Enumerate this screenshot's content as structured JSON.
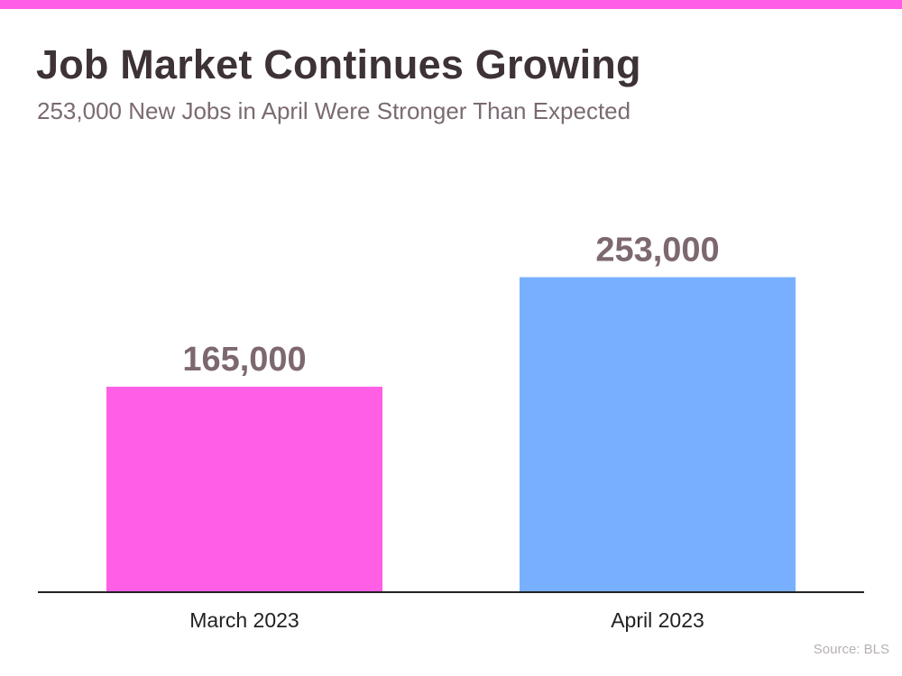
{
  "header": {
    "title": "Job Market Continues Growing",
    "subtitle": "253,000 New Jobs in April Were Stronger Than Expected"
  },
  "footer": {
    "source": "Source: BLS"
  },
  "colors": {
    "accent_bar": "#ff5ee5",
    "title_text": "#3d3235",
    "subtitle_text": "#7a6a72",
    "value_label": "#7d6870",
    "axis_line": "#222222",
    "source_text": "#b8b0b4"
  },
  "chart_data": {
    "type": "bar",
    "title": "Job Market Continues Growing",
    "subtitle": "253,000 New Jobs in April Were Stronger Than Expected",
    "categories": [
      "March 2023",
      "April 2023"
    ],
    "values": [
      165000,
      253000
    ],
    "data_labels": [
      "165,000",
      "253,000"
    ],
    "bar_colors": [
      "#ff5ee5",
      "#78b0ff"
    ],
    "ylim": [
      0,
      333000
    ],
    "xlabel": "",
    "ylabel": "",
    "grid": false,
    "legend": "none"
  }
}
